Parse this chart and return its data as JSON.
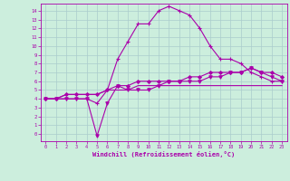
{
  "xlabel": "Windchill (Refroidissement éolien,°C)",
  "background_color": "#cceedd",
  "grid_color": "#aacccc",
  "line_color": "#aa00aa",
  "x_ticks": [
    0,
    1,
    2,
    3,
    4,
    5,
    6,
    7,
    8,
    9,
    10,
    11,
    12,
    13,
    14,
    15,
    16,
    17,
    18,
    19,
    20,
    21,
    22,
    23
  ],
  "y_ticks": [
    0,
    1,
    2,
    3,
    4,
    5,
    6,
    7,
    8,
    9,
    10,
    11,
    12,
    13,
    14
  ],
  "ylim": [
    -0.8,
    14.8
  ],
  "xlim": [
    -0.5,
    23.5
  ],
  "line1": [
    4,
    4,
    4,
    4,
    4,
    3.5,
    5,
    8.5,
    10.5,
    12.5,
    12.5,
    14,
    14.5,
    14,
    13.5,
    12,
    10,
    8.5,
    8.5,
    8,
    7,
    6.5,
    6,
    6
  ],
  "line2": [
    4,
    4,
    4,
    4,
    4,
    -0.2,
    3.5,
    5.5,
    5,
    5,
    5,
    5.5,
    6,
    6,
    6,
    6,
    6.5,
    6.5,
    7,
    7,
    7.5,
    7,
    6.5,
    6
  ],
  "line3": [
    4,
    4,
    4.5,
    4.5,
    4.5,
    4.5,
    5,
    5.5,
    5.5,
    6,
    6,
    6,
    6,
    6,
    6.5,
    6.5,
    7,
    7,
    7,
    7,
    7.5,
    7,
    7,
    6.5
  ],
  "line4": [
    4,
    4,
    4.5,
    4.5,
    4.5,
    4.5,
    5,
    5,
    5,
    5.5,
    5.5,
    5.5,
    5.5,
    5.5,
    5.5,
    5.5,
    5.5,
    5.5,
    5.5,
    5.5,
    5.5,
    5.5,
    5.5,
    5.5
  ]
}
